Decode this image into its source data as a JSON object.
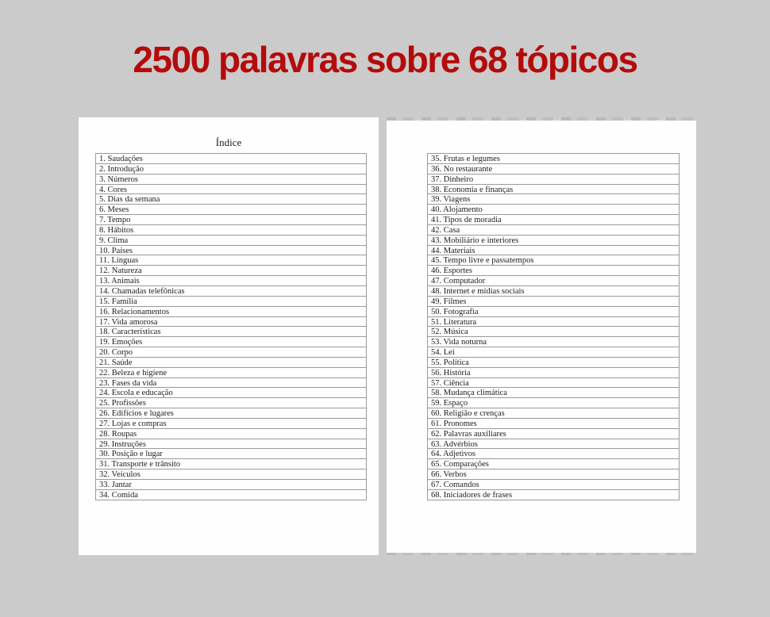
{
  "title": "2500 palavras sobre 68 tópicos",
  "colors": {
    "background": "#cbcbcb",
    "title_red": "#b40b0b",
    "page": "#fefefe"
  },
  "book": {
    "left_page": {
      "heading": "Índice",
      "items": [
        "1. Saudações",
        "2. Introdução",
        "3. Números",
        "4. Cores",
        "5. Dias da semana",
        "6. Meses",
        "7. Tempo",
        "8. Hábitos",
        "9. Clima",
        "10. Países",
        "11. Línguas",
        "12. Natureza",
        "13. Animais",
        "14. Chamadas telefônicas",
        "15. Família",
        "16. Relacionamentos",
        "17. Vida amorosa",
        "18. Características",
        "19. Emoções",
        "20. Corpo",
        "21. Saúde",
        "22. Beleza e higiene",
        "23. Fases da vida",
        "24. Escola e educação",
        "25. Profissões",
        "26. Edifícios e lugares",
        "27. Lojas e compras",
        "28. Roupas",
        "29. Instruções",
        "30. Posição e lugar",
        "31. Transporte e trânsito",
        "32. Veículos",
        "33. Jantar",
        "34. Comida"
      ]
    },
    "right_page": {
      "items": [
        "35. Frutas e legumes",
        "36. No restaurante",
        "37. Dinheiro",
        "38. Economia e finanças",
        "39. Viagens",
        "40. Alojamento",
        "41. Tipos de moradia",
        "42. Casa",
        "43. Mobiliário e interiores",
        "44. Materiais",
        "45. Tempo livre e passatempos",
        "46. Esportes",
        "47. Computador",
        "48. Internet e mídias sociais",
        "49. Filmes",
        "50. Fotografia",
        "51. Literatura",
        "52. Música",
        "53. Vida noturna",
        "54. Lei",
        "55. Política",
        "56. História",
        "57. Ciência",
        "58. Mudança climática",
        "59. Espaço",
        "60. Religião e crenças",
        "61. Pronomes",
        "62. Palavras auxiliares",
        "63. Advérbios",
        "64. Adjetivos",
        "65. Comparações",
        "66. Verbos",
        "67. Comandos",
        "68. Iniciadores de frases"
      ]
    }
  }
}
